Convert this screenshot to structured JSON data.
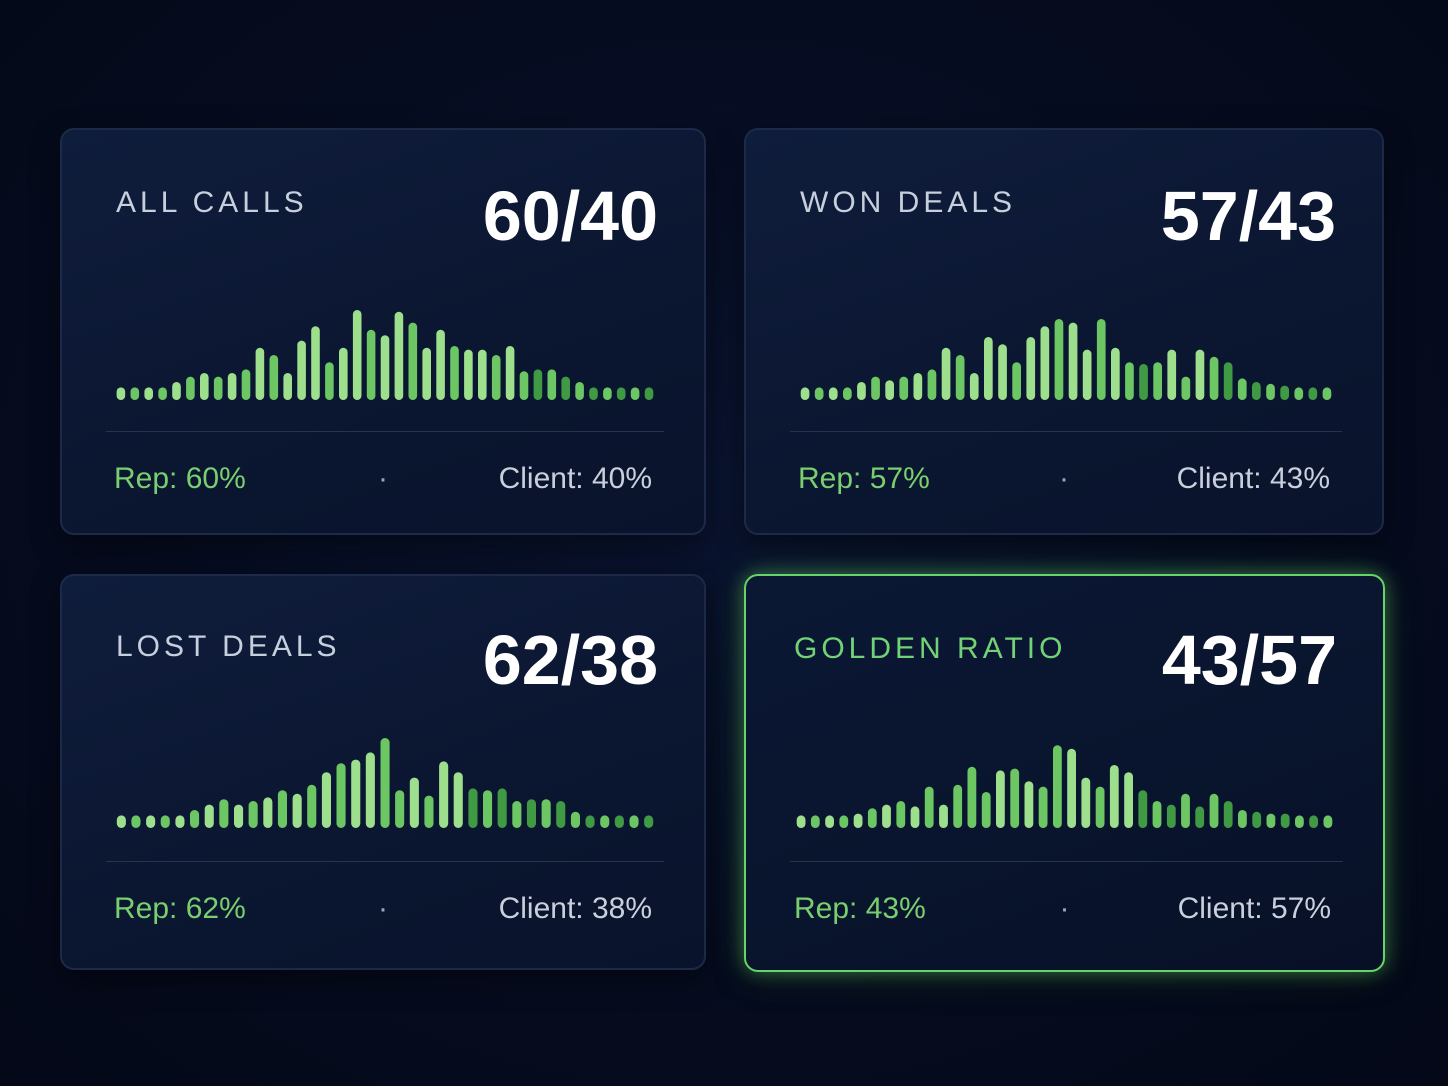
{
  "cards": [
    {
      "title": "ALL CALLS",
      "ratio": "60/40",
      "rep_label": "Rep: 60%",
      "separator": "·",
      "client_label": "Client: 40%",
      "highlight": false,
      "bars": [
        0.14,
        0.14,
        0.14,
        0.14,
        0.2,
        0.26,
        0.3,
        0.26,
        0.3,
        0.34,
        0.58,
        0.5,
        0.3,
        0.66,
        0.82,
        0.42,
        0.58,
        1.0,
        0.78,
        0.72,
        0.98,
        0.86,
        0.58,
        0.78,
        0.6,
        0.56,
        0.56,
        0.5,
        0.6,
        0.32,
        0.34,
        0.34,
        0.26,
        0.2,
        0.14,
        0.14,
        0.14,
        0.14,
        0.14
      ]
    },
    {
      "title": "WON DEALS",
      "ratio": "57/43",
      "rep_label": "Rep: 57%",
      "separator": "·",
      "client_label": "Client: 43%",
      "highlight": false,
      "bars": [
        0.14,
        0.14,
        0.14,
        0.14,
        0.2,
        0.26,
        0.22,
        0.26,
        0.3,
        0.34,
        0.58,
        0.5,
        0.3,
        0.7,
        0.62,
        0.42,
        0.7,
        0.82,
        0.9,
        0.86,
        0.56,
        0.9,
        0.58,
        0.42,
        0.4,
        0.42,
        0.56,
        0.26,
        0.56,
        0.48,
        0.42,
        0.24,
        0.2,
        0.18,
        0.16,
        0.14,
        0.14,
        0.14
      ]
    },
    {
      "title": "LOST DEALS",
      "ratio": "62/38",
      "rep_label": "Rep: 62%",
      "separator": "·",
      "client_label": "Client: 38%",
      "highlight": false,
      "bars": [
        0.14,
        0.14,
        0.14,
        0.14,
        0.14,
        0.2,
        0.26,
        0.32,
        0.26,
        0.3,
        0.34,
        0.42,
        0.38,
        0.48,
        0.62,
        0.72,
        0.76,
        0.84,
        1.0,
        0.42,
        0.56,
        0.36,
        0.74,
        0.62,
        0.44,
        0.42,
        0.44,
        0.3,
        0.32,
        0.32,
        0.3,
        0.18,
        0.14,
        0.14,
        0.14,
        0.14,
        0.14
      ]
    },
    {
      "title": "GOLDEN RATIO",
      "ratio": "43/57",
      "rep_label": "Rep: 43%",
      "separator": "·",
      "client_label": "Client: 57%",
      "highlight": true,
      "bars": [
        0.14,
        0.14,
        0.14,
        0.14,
        0.16,
        0.22,
        0.26,
        0.3,
        0.24,
        0.46,
        0.26,
        0.48,
        0.68,
        0.4,
        0.64,
        0.66,
        0.52,
        0.46,
        0.92,
        0.88,
        0.56,
        0.46,
        0.7,
        0.62,
        0.42,
        0.3,
        0.26,
        0.38,
        0.24,
        0.38,
        0.3,
        0.2,
        0.18,
        0.16,
        0.16,
        0.14,
        0.14,
        0.14
      ]
    }
  ],
  "colors": {
    "bar_light": "#9ddf8c",
    "bar_mid": "#6cc663",
    "bar_dark": "#3f9a43",
    "rep_green": "#79cf6f",
    "highlight_border": "#66d46a"
  }
}
